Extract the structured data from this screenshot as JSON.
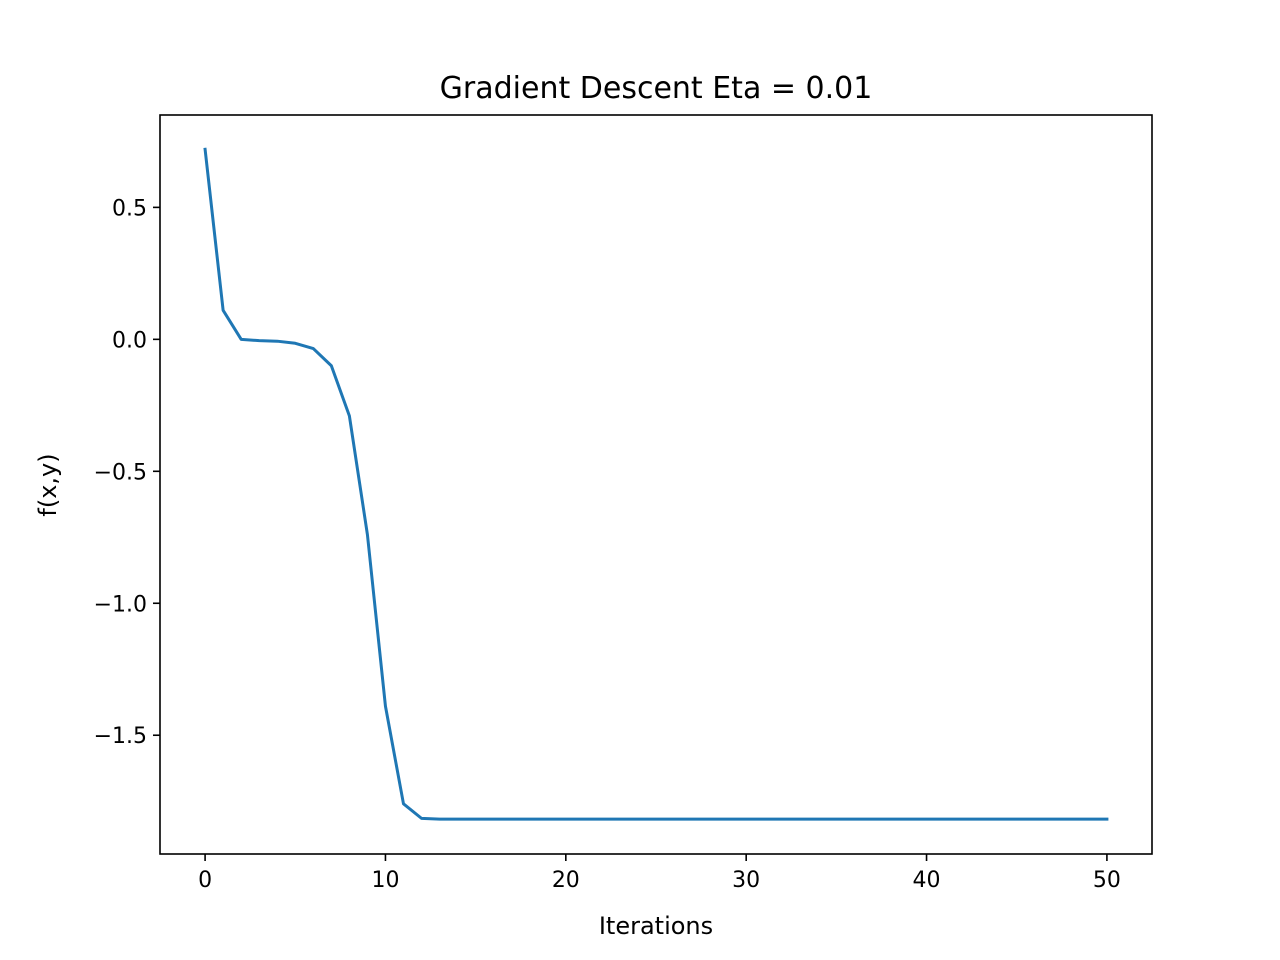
{
  "chart_data": {
    "type": "line",
    "title": "Gradient Descent Eta = 0.01",
    "xlabel": "Iterations",
    "ylabel": "f(x,y)",
    "xlim": [
      -2.5,
      52.5
    ],
    "ylim": [
      -1.95,
      0.85
    ],
    "xticks": [
      0,
      10,
      20,
      30,
      40,
      50
    ],
    "xtick_labels": [
      "0",
      "10",
      "20",
      "30",
      "40",
      "50"
    ],
    "yticks": [
      0.5,
      0.0,
      -0.5,
      -1.0,
      -1.5
    ],
    "ytick_labels": [
      "0.5",
      "0.0",
      "−0.5",
      "−1.0",
      "−1.5"
    ],
    "grid": false,
    "line_color": "#1f77b4",
    "x": [
      0,
      1,
      2,
      3,
      4,
      5,
      6,
      7,
      8,
      9,
      10,
      11,
      12,
      13,
      14,
      15,
      16,
      17,
      18,
      19,
      20,
      21,
      22,
      23,
      24,
      25,
      26,
      27,
      28,
      29,
      30,
      31,
      32,
      33,
      34,
      35,
      36,
      37,
      38,
      39,
      40,
      41,
      42,
      43,
      44,
      45,
      46,
      47,
      48,
      49,
      50
    ],
    "values": [
      0.72,
      0.11,
      0.0,
      -0.005,
      -0.007,
      -0.015,
      -0.035,
      -0.1,
      -0.29,
      -0.74,
      -1.39,
      -1.76,
      -1.815,
      -1.818,
      -1.818,
      -1.818,
      -1.818,
      -1.818,
      -1.818,
      -1.818,
      -1.818,
      -1.818,
      -1.818,
      -1.818,
      -1.818,
      -1.818,
      -1.818,
      -1.818,
      -1.818,
      -1.818,
      -1.818,
      -1.818,
      -1.818,
      -1.818,
      -1.818,
      -1.818,
      -1.818,
      -1.818,
      -1.818,
      -1.818,
      -1.818,
      -1.818,
      -1.818,
      -1.818,
      -1.818,
      -1.818,
      -1.818,
      -1.818,
      -1.818,
      -1.818,
      -1.818
    ]
  }
}
